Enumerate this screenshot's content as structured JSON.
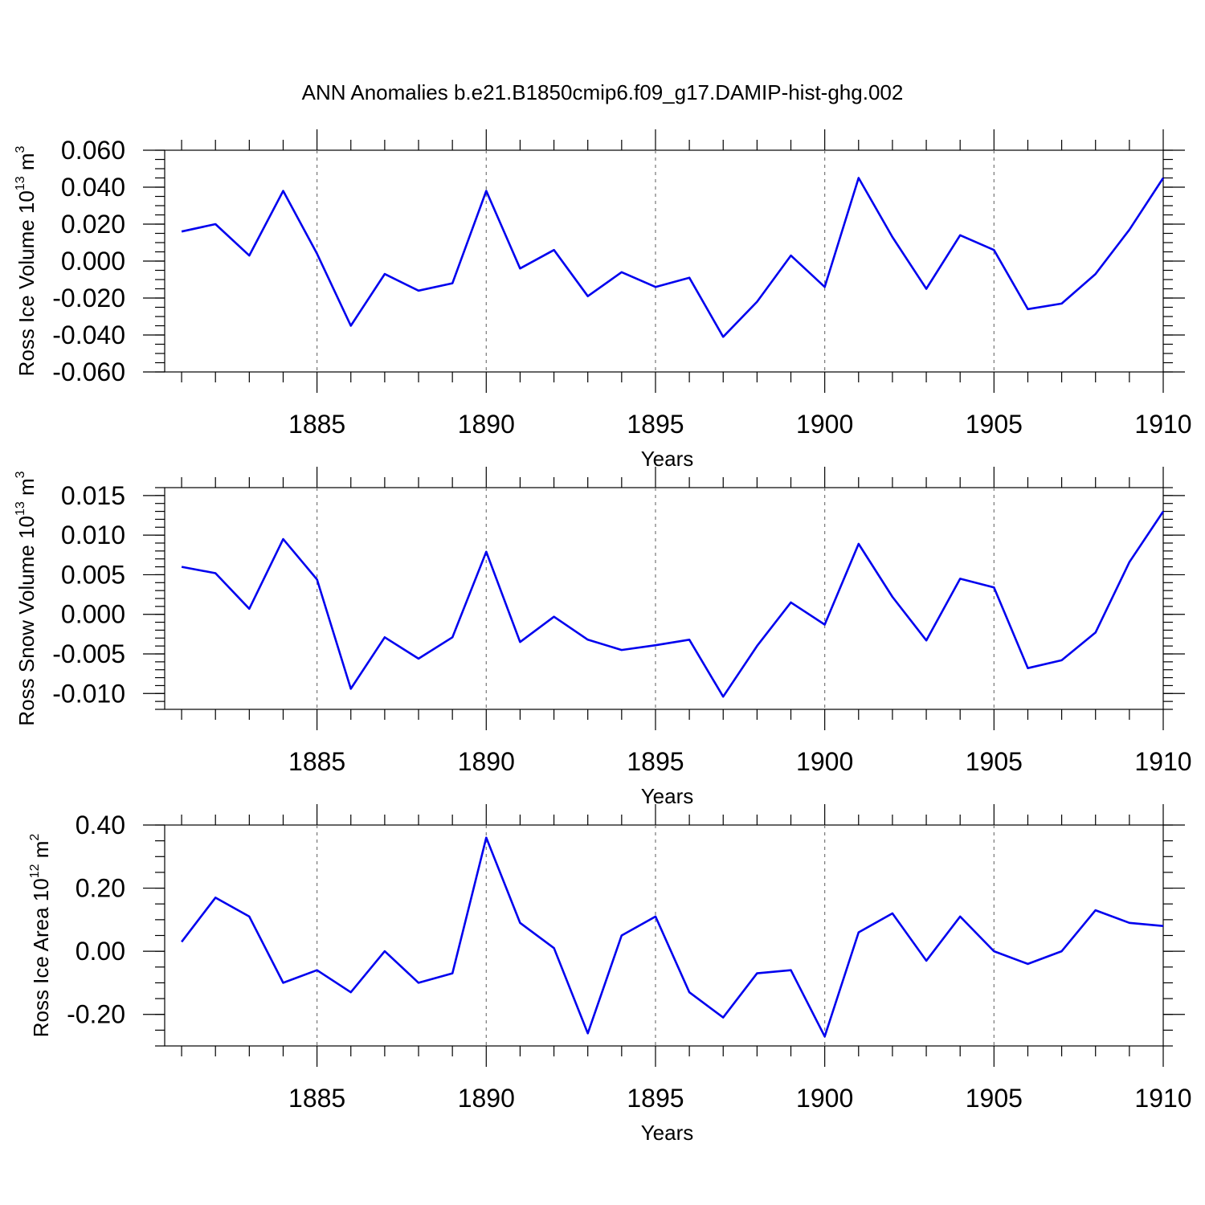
{
  "title": "ANN Anomalies b.e21.B1850cmip6.f09_g17.DAMIP-hist-ghg.002",
  "colors": {
    "series": "#0000ee",
    "grid": "#777777",
    "axis": "#000000"
  },
  "chart_data": [
    {
      "type": "line",
      "xlabel": "Years",
      "ylabel": {
        "text": "Ross Ice Volume 10",
        "sup": "13",
        "unit": " m",
        "unit_sup": "3"
      },
      "x": [
        1881,
        1882,
        1883,
        1884,
        1885,
        1886,
        1887,
        1888,
        1889,
        1890,
        1891,
        1892,
        1893,
        1894,
        1895,
        1896,
        1897,
        1898,
        1899,
        1900,
        1901,
        1902,
        1903,
        1904,
        1905,
        1906,
        1907,
        1908,
        1909,
        1910
      ],
      "values": [
        0.016,
        0.02,
        0.003,
        0.038,
        0.004,
        -0.035,
        -0.007,
        -0.016,
        -0.012,
        0.038,
        -0.004,
        0.006,
        -0.019,
        -0.006,
        -0.014,
        -0.009,
        -0.041,
        -0.022,
        0.003,
        -0.014,
        0.045,
        0.013,
        -0.015,
        0.014,
        0.006,
        -0.026,
        -0.023,
        -0.007,
        0.017,
        0.045
      ],
      "xlim": [
        1880.5,
        1910
      ],
      "ylim": [
        -0.06,
        0.06
      ],
      "x_ticks": [
        1885,
        1890,
        1895,
        1900,
        1905,
        1910
      ],
      "x_tick_labels": [
        "1885",
        "1890",
        "1895",
        "1900",
        "1905",
        "1910"
      ],
      "y_ticks": [
        -0.06,
        -0.04,
        -0.02,
        0.0,
        0.02,
        0.04,
        0.06
      ],
      "y_tick_labels": [
        "-0.060",
        "-0.040",
        "-0.020",
        "0.000",
        "0.020",
        "0.040",
        "0.060"
      ],
      "y_minor_step": 0.005,
      "grid": "vertical dashed at major x ticks"
    },
    {
      "type": "line",
      "xlabel": "Years",
      "ylabel": {
        "text": "Ross Snow Volume 10",
        "sup": "13",
        "unit": " m",
        "unit_sup": "3"
      },
      "x": [
        1881,
        1882,
        1883,
        1884,
        1885,
        1886,
        1887,
        1888,
        1889,
        1890,
        1891,
        1892,
        1893,
        1894,
        1895,
        1896,
        1897,
        1898,
        1899,
        1900,
        1901,
        1902,
        1903,
        1904,
        1905,
        1906,
        1907,
        1908,
        1909,
        1910
      ],
      "values": [
        0.006,
        0.0052,
        0.0007,
        0.0095,
        0.0044,
        -0.0094,
        -0.0029,
        -0.0056,
        -0.0029,
        0.0079,
        -0.0035,
        -0.0003,
        -0.0032,
        -0.0045,
        -0.0039,
        -0.0032,
        -0.0104,
        -0.004,
        0.0015,
        -0.0013,
        0.0089,
        0.0022,
        -0.0033,
        0.0045,
        0.0034,
        -0.0068,
        -0.0058,
        -0.0023,
        0.0066,
        0.013
      ],
      "xlim": [
        1880.5,
        1910
      ],
      "ylim": [
        -0.012,
        0.016
      ],
      "x_ticks": [
        1885,
        1890,
        1895,
        1900,
        1905,
        1910
      ],
      "x_tick_labels": [
        "1885",
        "1890",
        "1895",
        "1900",
        "1905",
        "1910"
      ],
      "y_ticks": [
        -0.01,
        -0.005,
        0.0,
        0.005,
        0.01,
        0.015
      ],
      "y_tick_labels": [
        "-0.010",
        "-0.005",
        "0.000",
        "0.005",
        "0.010",
        "0.015"
      ],
      "y_minor_step": 0.001,
      "grid": "vertical dashed at major x ticks"
    },
    {
      "type": "line",
      "xlabel": "Years",
      "ylabel": {
        "text": "Ross Ice Area 10",
        "sup": "12",
        "unit": " m",
        "unit_sup": "2"
      },
      "x": [
        1881,
        1882,
        1883,
        1884,
        1885,
        1886,
        1887,
        1888,
        1889,
        1890,
        1891,
        1892,
        1893,
        1894,
        1895,
        1896,
        1897,
        1898,
        1899,
        1900,
        1901,
        1902,
        1903,
        1904,
        1905,
        1906,
        1907,
        1908,
        1909,
        1910
      ],
      "values": [
        0.03,
        0.17,
        0.11,
        -0.1,
        -0.06,
        -0.13,
        0.0,
        -0.1,
        -0.07,
        0.36,
        0.09,
        0.01,
        -0.26,
        0.05,
        0.11,
        -0.13,
        -0.21,
        -0.07,
        -0.06,
        -0.27,
        0.06,
        0.12,
        -0.03,
        0.11,
        0.0,
        -0.04,
        0.0,
        0.13,
        0.09,
        0.08
      ],
      "xlim": [
        1880.5,
        1910
      ],
      "ylim": [
        -0.3,
        0.4
      ],
      "x_ticks": [
        1885,
        1890,
        1895,
        1900,
        1905,
        1910
      ],
      "x_tick_labels": [
        "1885",
        "1890",
        "1895",
        "1900",
        "1905",
        "1910"
      ],
      "y_ticks": [
        -0.2,
        0.0,
        0.2,
        0.4
      ],
      "y_tick_labels": [
        "-0.20",
        "0.00",
        "0.20",
        "0.40"
      ],
      "y_minor_step": 0.05,
      "grid": "vertical dashed at major x ticks"
    }
  ]
}
